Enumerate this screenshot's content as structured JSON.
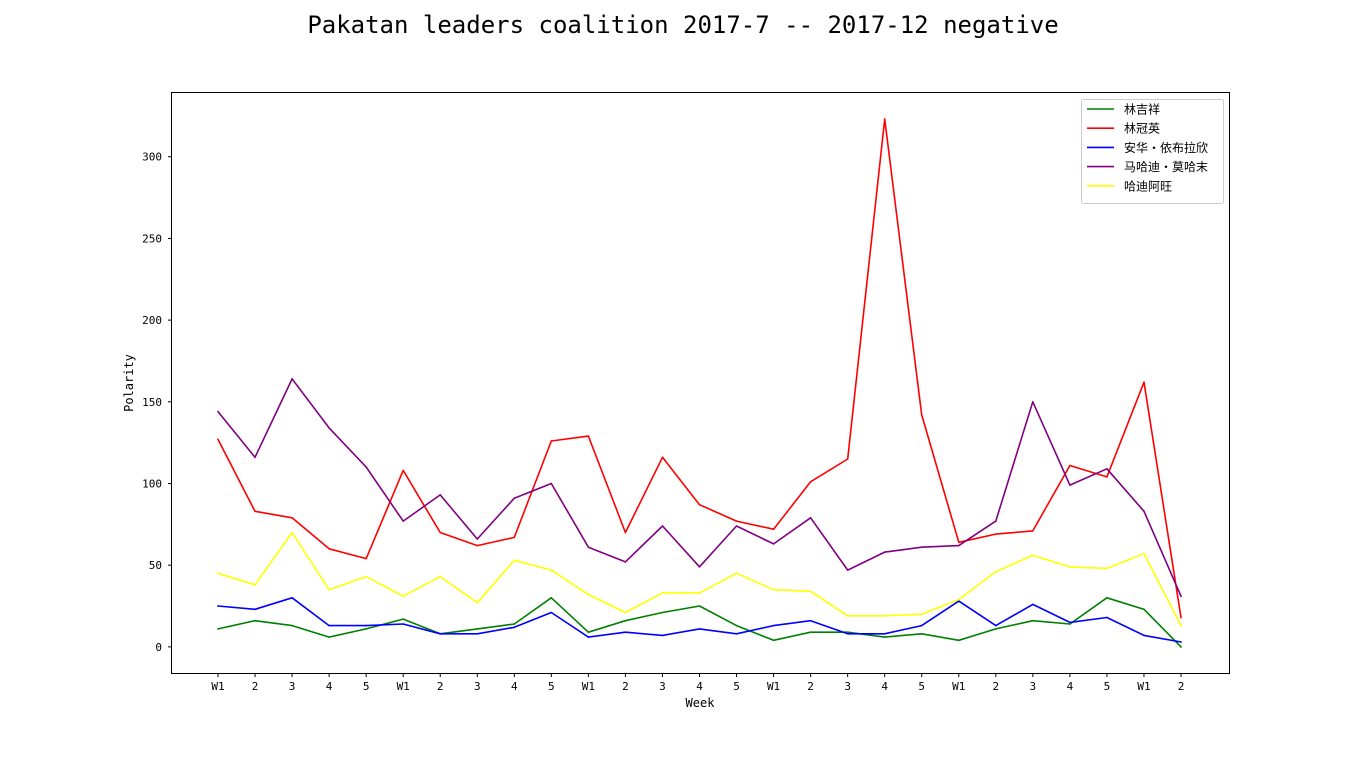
{
  "chart_data": {
    "type": "line",
    "title": "Pakatan leaders coalition 2017-7 -- 2017-12 negative",
    "xlabel": "Week",
    "ylabel": "Polarity",
    "x": [
      "W1",
      "2",
      "3",
      "4",
      "5",
      "W1",
      "2",
      "3",
      "4",
      "5",
      "W1",
      "2",
      "3",
      "4",
      "5",
      "W1",
      "2",
      "3",
      "4",
      "5",
      "W1",
      "2",
      "3",
      "4",
      "5",
      "W1",
      "2"
    ],
    "yticks": [
      0,
      50,
      100,
      150,
      200,
      250,
      300
    ],
    "ylim": [
      -16,
      339
    ],
    "grid": false,
    "legend_position": "top-right",
    "series": [
      {
        "name": "林吉祥",
        "color": "#008000",
        "values": [
          11,
          16,
          13,
          6,
          11,
          17,
          8,
          11,
          14,
          30,
          9,
          16,
          21,
          25,
          13,
          4,
          9,
          9,
          6,
          8,
          4,
          11,
          16,
          14,
          30,
          23,
          0
        ]
      },
      {
        "name": "林冠英",
        "color": "#ff0000",
        "values": [
          127,
          83,
          79,
          60,
          54,
          108,
          70,
          62,
          67,
          126,
          129,
          70,
          116,
          87,
          77,
          72,
          101,
          115,
          323,
          142,
          64,
          69,
          71,
          111,
          104,
          162,
          18
        ]
      },
      {
        "name": "安华・依布拉欣",
        "color": "#0000ff",
        "values": [
          25,
          23,
          30,
          13,
          13,
          14,
          8,
          8,
          12,
          21,
          6,
          9,
          7,
          11,
          8,
          13,
          16,
          8,
          8,
          13,
          28,
          13,
          26,
          15,
          18,
          7,
          3
        ]
      },
      {
        "name": "马哈迪・莫哈末",
        "color": "#800080",
        "values": [
          144,
          116,
          164,
          134,
          110,
          77,
          93,
          66,
          91,
          100,
          61,
          52,
          74,
          49,
          74,
          63,
          79,
          47,
          58,
          61,
          62,
          77,
          150,
          99,
          109,
          83,
          31
        ]
      },
      {
        "name": "哈迪阿旺",
        "color": "#ffff00",
        "values": [
          45,
          38,
          70,
          35,
          43,
          31,
          43,
          27,
          53,
          47,
          32,
          21,
          33,
          33,
          45,
          35,
          34,
          19,
          19,
          20,
          29,
          46,
          56,
          49,
          48,
          57,
          13
        ]
      }
    ]
  }
}
